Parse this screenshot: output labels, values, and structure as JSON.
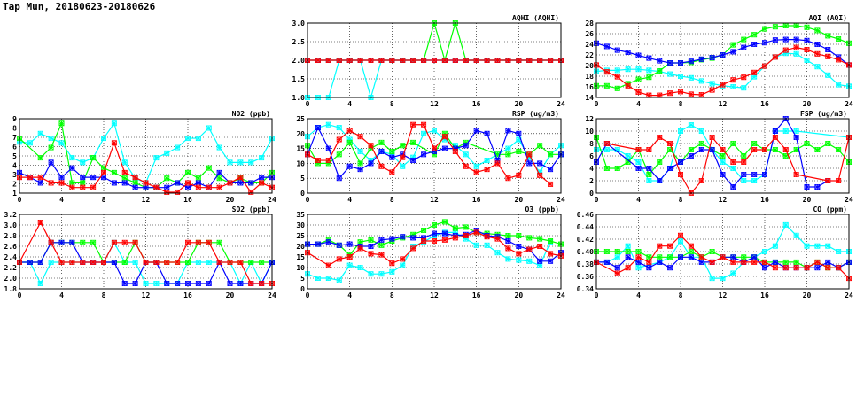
{
  "page_title": "Tap Mun, 20180623-20180626",
  "chart_data": [
    {
      "id": "aqhi",
      "type": "line",
      "title": "AQHI (AQHI)",
      "ylim": [
        1,
        3
      ],
      "yticks": [
        "1.0",
        "1.5",
        "2.0",
        "2.5",
        "3.0"
      ],
      "xlim": [
        0,
        24
      ],
      "xticks": [
        "0",
        "4",
        "8",
        "12",
        "16",
        "20",
        "24"
      ],
      "grid": true,
      "series": [
        {
          "color": "#00ffff",
          "values": [
            1,
            1,
            1,
            2,
            2,
            2,
            1,
            2,
            2,
            2,
            2,
            2,
            2,
            2,
            2,
            2,
            2,
            2,
            2,
            2,
            2,
            2,
            2,
            2,
            2
          ]
        },
        {
          "color": "#00ff00",
          "values": [
            2,
            2,
            2,
            2,
            2,
            2,
            2,
            2,
            2,
            2,
            2,
            2,
            3,
            2,
            3,
            2,
            2,
            2,
            2,
            2,
            2,
            2,
            2,
            2,
            2
          ]
        },
        {
          "color": "#0000ff",
          "values": [
            2,
            2,
            2,
            2,
            2,
            2,
            2,
            2,
            2,
            2,
            2,
            2,
            2,
            2,
            2,
            2,
            2,
            2,
            2,
            2,
            2,
            2,
            2,
            2,
            2
          ]
        },
        {
          "color": "#ff0000",
          "values": [
            2,
            2,
            2,
            2,
            2,
            2,
            2,
            2,
            2,
            2,
            2,
            2,
            2,
            2,
            2,
            2,
            2,
            2,
            2,
            2,
            2,
            2,
            2,
            2,
            2
          ]
        }
      ]
    },
    {
      "id": "aqi",
      "type": "line",
      "title": "AQI (AQI)",
      "ylim": [
        14,
        28
      ],
      "yticks": [
        "14",
        "16",
        "18",
        "20",
        "22",
        "24",
        "26",
        "28"
      ],
      "xlim": [
        0,
        24
      ],
      "xticks": [
        "0",
        "4",
        "8",
        "12",
        "16",
        "20",
        "24"
      ],
      "grid": true,
      "series": [
        {
          "color": "#00ffff",
          "values": [
            18.9,
            19.1,
            19.1,
            19.3,
            19.3,
            19.1,
            18.9,
            18.4,
            18,
            17.7,
            17.1,
            16.6,
            16.2,
            16,
            15.8,
            17.9,
            19.9,
            21.6,
            22.3,
            22.2,
            21,
            19.8,
            18.2,
            16.4,
            16.1
          ]
        },
        {
          "color": "#00ff00",
          "values": [
            16.2,
            16.2,
            15.7,
            16.6,
            17.4,
            17.8,
            19,
            20.5,
            20.5,
            20.6,
            21.1,
            21.4,
            22,
            23.9,
            24.9,
            25.8,
            26.9,
            27.3,
            27.5,
            27.5,
            27.2,
            26.6,
            25.6,
            25,
            24.2
          ]
        },
        {
          "color": "#0000ff",
          "values": [
            24.2,
            23.6,
            22.9,
            22.5,
            21.9,
            21.4,
            20.9,
            20.5,
            20.5,
            20.8,
            21.2,
            21.5,
            22,
            22.6,
            23.4,
            24,
            24.3,
            24.8,
            24.9,
            24.9,
            24.7,
            24,
            23,
            21.6,
            20.1
          ]
        },
        {
          "color": "#ff0000",
          "values": [
            20.1,
            18.8,
            17.9,
            16.2,
            15,
            14.4,
            14.4,
            14.8,
            15.1,
            14.6,
            14.5,
            15.4,
            16.4,
            17.3,
            17.8,
            18.7,
            19.9,
            21.6,
            22.9,
            23.4,
            23,
            22.2,
            21.7,
            21.1,
            20.1
          ]
        }
      ]
    },
    {
      "id": "no2",
      "type": "line",
      "title": "NO2 (ppb)",
      "ylim": [
        1,
        9
      ],
      "yticks": [
        "1",
        "2",
        "3",
        "4",
        "5",
        "6",
        "7",
        "8",
        "9"
      ],
      "xlim": [
        0,
        24
      ],
      "xticks": [
        "0",
        "4",
        "8",
        "12",
        "16",
        "20",
        "24"
      ],
      "grid": true,
      "series": [
        {
          "color": "#00ffff",
          "values": [
            6.5,
            6.4,
            7.4,
            6.9,
            6.4,
            4.8,
            4.3,
            4.8,
            6.9,
            8.5,
            4.3,
            2.6,
            2.1,
            4.8,
            5.3,
            5.9,
            6.9,
            6.9,
            8.0,
            5.9,
            4.3,
            4.3,
            4.3,
            4.8,
            6.9
          ]
        },
        {
          "color": "#00ff00",
          "values": [
            6.9,
            null,
            4.8,
            5.9,
            8.5,
            2.1,
            2.1,
            4.8,
            3.7,
            3.2,
            2.6,
            2.1,
            1.6,
            1.6,
            2.6,
            2.1,
            3.2,
            2.6,
            3.7,
            2.6,
            2.1,
            2.6,
            2.1,
            2.1,
            3.2
          ]
        },
        {
          "color": "#0000ff",
          "values": [
            3.2,
            2.7,
            2.1,
            4.3,
            2.7,
            3.7,
            2.7,
            2.7,
            2.7,
            2.1,
            2.1,
            1.6,
            1.6,
            1.6,
            1.6,
            2.1,
            1.6,
            2.1,
            1.6,
            3.2,
            2.1,
            2.1,
            2.1,
            2.7,
            2.7
          ]
        },
        {
          "color": "#ff0000",
          "values": [
            2.7,
            2.7,
            2.7,
            2.1,
            2.1,
            1.6,
            1.6,
            1.6,
            3.2,
            6.4,
            3.2,
            2.7,
            2.1,
            1.6,
            1.1,
            1.1,
            2.1,
            1.6,
            1.6,
            1.6,
            2.1,
            2.7,
            1.1,
            2.1,
            1.6
          ]
        }
      ]
    },
    {
      "id": "rsp",
      "type": "line",
      "title": "RSP (ug/m3)",
      "ylim": [
        0,
        25
      ],
      "yticks": [
        "0",
        "5",
        "10",
        "15",
        "20",
        "25"
      ],
      "xlim": [
        0,
        24
      ],
      "xticks": [
        "0",
        "4",
        "8",
        "12",
        "16",
        "20",
        "24"
      ],
      "grid": true,
      "series": [
        {
          "color": "#00ffff",
          "values": [
            19,
            22,
            23,
            22,
            18,
            14,
            11,
            14,
            13,
            9,
            12,
            20,
            21,
            18,
            16,
            13,
            9,
            11,
            13,
            15,
            18,
            12,
            7,
            13,
            16
          ]
        },
        {
          "color": "#00ff00",
          "values": [
            16,
            10,
            10,
            13,
            17,
            10,
            15,
            17,
            14,
            16,
            17,
            null,
            13,
            20,
            15,
            17,
            null,
            null,
            13,
            13,
            14,
            13,
            16,
            13,
            13
          ]
        },
        {
          "color": "#0000ff",
          "values": [
            13,
            22,
            15,
            5,
            9,
            8,
            10,
            14,
            12,
            13,
            11,
            13,
            14,
            15,
            15,
            16,
            21,
            20,
            11,
            21,
            20,
            10,
            10,
            8,
            13
          ]
        },
        {
          "color": "#ff0000",
          "values": [
            13,
            11,
            11,
            18,
            21,
            19,
            16,
            9,
            7,
            12,
            23,
            23,
            15,
            19,
            14,
            9,
            7,
            8,
            10,
            5,
            6,
            13,
            6,
            3,
            null
          ]
        }
      ]
    },
    {
      "id": "fsp",
      "type": "line",
      "title": "FSP (ug/m3)",
      "ylim": [
        0,
        12
      ],
      "yticks": [
        "0",
        "2",
        "4",
        "6",
        "8",
        "10",
        "12"
      ],
      "xlim": [
        0,
        24
      ],
      "xticks": [
        "0",
        "4",
        "8",
        "12",
        "16",
        "20",
        "24"
      ],
      "grid": true,
      "series": [
        {
          "color": "#00ffff",
          "values": [
            7,
            7,
            7,
            6,
            5,
            2,
            2,
            4,
            10,
            11,
            10,
            7,
            5,
            4,
            2,
            2,
            3,
            10,
            10,
            10,
            null,
            null,
            null,
            null,
            9
          ]
        },
        {
          "color": "#00ff00",
          "values": [
            9,
            4,
            4,
            5,
            7,
            3,
            5,
            7,
            5,
            7,
            8,
            7,
            6,
            8,
            6,
            8,
            7,
            7,
            6,
            7,
            8,
            7,
            8,
            7,
            5
          ]
        },
        {
          "color": "#0000ff",
          "values": [
            5,
            8,
            null,
            null,
            4,
            4,
            2,
            4,
            5,
            6,
            7,
            7,
            3,
            1,
            3,
            3,
            3,
            10,
            12,
            9,
            1,
            1,
            2,
            null,
            null
          ]
        },
        {
          "color": "#ff0000",
          "values": [
            null,
            8,
            null,
            null,
            7,
            7,
            9,
            8,
            3,
            0,
            2,
            9,
            7,
            5,
            5,
            7,
            7,
            9,
            7,
            3,
            null,
            null,
            2,
            2,
            9
          ]
        }
      ]
    },
    {
      "id": "so2",
      "type": "line",
      "title": "SO2 (ppb)",
      "ylim": [
        1.8,
        3.2
      ],
      "yticks": [
        "1.8",
        "2.0",
        "2.2",
        "2.4",
        "2.6",
        "2.8",
        "3.0",
        "3.2"
      ],
      "xlim": [
        0,
        24
      ],
      "xticks": [
        "0",
        "4",
        "8",
        "12",
        "16",
        "20",
        "24"
      ],
      "grid": true,
      "series": [
        {
          "color": "#00ffff",
          "values": [
            2.3,
            2.3,
            1.9,
            2.3,
            2.3,
            2.3,
            2.3,
            2.3,
            2.3,
            2.67,
            2.3,
            2.3,
            1.9,
            1.9,
            1.9,
            1.9,
            2.3,
            2.3,
            2.3,
            2.3,
            2.3,
            1.9,
            2.3,
            1.9,
            2.3
          ]
        },
        {
          "color": "#00ff00",
          "values": [
            2.3,
            2.3,
            2.3,
            2.67,
            2.67,
            2.67,
            2.67,
            2.67,
            2.3,
            2.3,
            2.3,
            2.67,
            2.3,
            2.3,
            2.3,
            2.3,
            2.3,
            2.67,
            2.67,
            2.67,
            2.3,
            2.3,
            2.3,
            2.3,
            2.3
          ]
        },
        {
          "color": "#0000ff",
          "values": [
            2.3,
            2.3,
            2.3,
            2.67,
            2.67,
            2.67,
            2.3,
            2.3,
            2.3,
            2.3,
            1.9,
            1.9,
            2.3,
            2.3,
            1.9,
            1.9,
            1.9,
            1.9,
            1.9,
            2.3,
            1.9,
            1.9,
            1.9,
            1.9,
            2.3
          ]
        },
        {
          "color": "#ff0000",
          "values": [
            2.3,
            null,
            3.05,
            2.67,
            2.3,
            2.3,
            2.3,
            2.3,
            2.3,
            2.67,
            2.67,
            2.67,
            2.3,
            2.3,
            2.3,
            2.3,
            2.67,
            2.67,
            2.67,
            2.3,
            2.3,
            2.3,
            1.9,
            1.9,
            1.9
          ]
        }
      ]
    },
    {
      "id": "o3",
      "type": "line",
      "title": "O3 (ppb)",
      "ylim": [
        0,
        35
      ],
      "yticks": [
        "0",
        "5",
        "10",
        "15",
        "20",
        "25",
        "30",
        "35"
      ],
      "xlim": [
        0,
        24
      ],
      "xticks": [
        "0",
        "4",
        "8",
        "12",
        "16",
        "20",
        "24"
      ],
      "grid": true,
      "series": [
        {
          "color": "#00ffff",
          "values": [
            7,
            5,
            5,
            4,
            11,
            10,
            7,
            7,
            8,
            11,
            20,
            22,
            25,
            26.5,
            26.5,
            23.5,
            20.5,
            20.5,
            17,
            14,
            13.5,
            13,
            11,
            22,
            null
          ]
        },
        {
          "color": "#00ff00",
          "values": [
            21,
            21,
            23,
            20.5,
            16,
            22,
            23,
            20.5,
            22.5,
            24,
            25.5,
            27.5,
            30,
            31.5,
            28.5,
            29,
            26.5,
            26,
            25.5,
            25,
            25,
            24,
            23.5,
            22.5,
            21
          ]
        },
        {
          "color": "#0000ff",
          "values": [
            21,
            21,
            22,
            20.5,
            21,
            20,
            20,
            23,
            23.5,
            24.5,
            24,
            24,
            26,
            26,
            25,
            25.5,
            27.5,
            25,
            24.5,
            22.5,
            20,
            18.5,
            13,
            13,
            17
          ]
        },
        {
          "color": "#ff0000",
          "values": [
            17,
            null,
            11,
            14,
            15,
            19,
            16.5,
            16,
            12,
            14,
            19,
            22.5,
            22.5,
            23,
            24,
            25,
            26.5,
            24.5,
            23.5,
            19,
            16.5,
            18.5,
            20,
            16.5,
            15.5
          ]
        }
      ]
    },
    {
      "id": "co",
      "type": "line",
      "title": "CO (ppm)",
      "ylim": [
        0.34,
        0.46
      ],
      "yticks": [
        "0.34",
        "0.36",
        "0.38",
        "0.40",
        "0.42",
        "0.44",
        "0.46"
      ],
      "xlim": [
        0,
        24
      ],
      "xticks": [
        "0",
        "4",
        "8",
        "12",
        "16",
        "20",
        "24"
      ],
      "grid": true,
      "series": [
        {
          "color": "#00ffff",
          "values": [
            0.383,
            0.383,
            0.391,
            0.409,
            0.374,
            null,
            0.383,
            0.391,
            0.417,
            0.391,
            0.391,
            0.357,
            0.357,
            0.365,
            0.383,
            0.391,
            0.4,
            0.409,
            0.443,
            0.426,
            0.409,
            0.409,
            0.409,
            0.4,
            0.4
          ]
        },
        {
          "color": "#00ff00",
          "values": [
            0.4,
            0.4,
            0.4,
            0.4,
            0.4,
            0.391,
            0.391,
            0.391,
            0.391,
            0.4,
            0.391,
            0.4,
            0.391,
            0.391,
            0.391,
            0.391,
            0.383,
            0.383,
            0.383,
            0.383,
            0.374,
            0.383,
            0.374,
            0.374,
            0.383
          ]
        },
        {
          "color": "#0000ff",
          "values": [
            0.383,
            0.383,
            0.374,
            0.391,
            0.383,
            0.374,
            0.383,
            0.374,
            0.391,
            0.391,
            0.383,
            0.383,
            0.391,
            0.391,
            0.383,
            0.391,
            0.374,
            0.383,
            0.374,
            0.374,
            0.374,
            0.374,
            0.383,
            0.374,
            0.383
          ]
        },
        {
          "color": "#ff0000",
          "values": [
            0.383,
            null,
            0.365,
            0.374,
            0.391,
            0.383,
            0.409,
            0.409,
            0.426,
            0.409,
            0.391,
            0.383,
            0.391,
            0.383,
            0.383,
            0.383,
            0.383,
            0.374,
            0.374,
            0.374,
            0.374,
            0.383,
            0.374,
            0.374,
            0.357
          ]
        }
      ]
    }
  ]
}
